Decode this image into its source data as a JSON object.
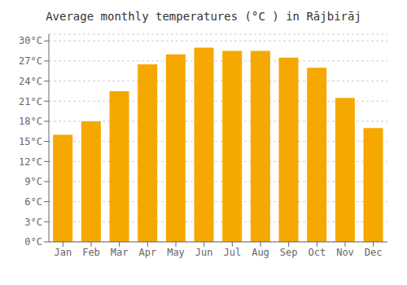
{
  "chart_data": {
    "type": "bar",
    "title": "Average monthly temperatures (°C ) in Rājbirāj",
    "categories": [
      "Jan",
      "Feb",
      "Mar",
      "Apr",
      "May",
      "Jun",
      "Jul",
      "Aug",
      "Sep",
      "Oct",
      "Nov",
      "Dec"
    ],
    "values": [
      16,
      18,
      22.5,
      26.5,
      28,
      29,
      28.5,
      28.5,
      27.5,
      26,
      21.5,
      17
    ],
    "color": "#F5A800",
    "ylim": [
      0,
      31
    ],
    "yticks": [
      {
        "value": 0,
        "label": "0°C"
      },
      {
        "value": 3,
        "label": "3°C"
      },
      {
        "value": 6,
        "label": "6°C"
      },
      {
        "value": 9,
        "label": "9°C"
      },
      {
        "value": 12,
        "label": "12°C"
      },
      {
        "value": 15,
        "label": "15°C"
      },
      {
        "value": 18,
        "label": "18°C"
      },
      {
        "value": 21,
        "label": "21°C"
      },
      {
        "value": 24,
        "label": "24°C"
      },
      {
        "value": 27,
        "label": "27°C"
      },
      {
        "value": 30,
        "label": "30°C"
      }
    ],
    "grid": true
  }
}
